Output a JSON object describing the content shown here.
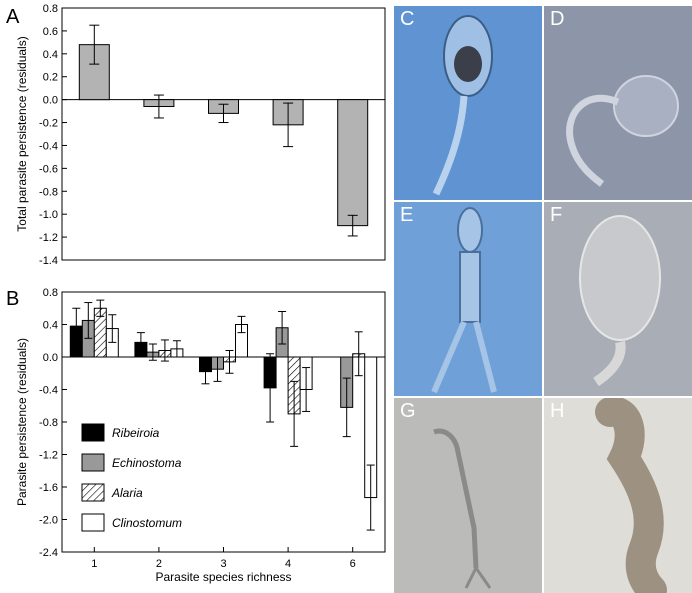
{
  "chart_data": [
    {
      "panel": "A",
      "type": "bar",
      "categories": [
        "1",
        "2",
        "3",
        "4",
        "6"
      ],
      "values": [
        0.48,
        -0.06,
        -0.12,
        -0.22,
        -1.1
      ],
      "errors": [
        0.17,
        0.1,
        0.08,
        0.19,
        0.09
      ],
      "ylabel": "Total parasite persistence (residuals)",
      "ylim": [
        -1.4,
        0.8
      ],
      "yticks": [
        "0.8",
        "0.6",
        "0.4",
        "0.2",
        "0.0",
        "-0.2",
        "-0.4",
        "-0.6",
        "-0.8",
        "-1.0",
        "-1.2",
        "-1.4"
      ],
      "bar_color": "#b3b3b3"
    },
    {
      "panel": "B",
      "type": "bar",
      "categories": [
        "1",
        "2",
        "3",
        "4",
        "6"
      ],
      "xlabel": "Parasite species richness",
      "ylabel": "Parasite persistence (residuals)",
      "ylim": [
        -2.4,
        0.8
      ],
      "yticks": [
        "0.8",
        "0.4",
        "0.0",
        "-0.4",
        "-0.8",
        "-1.2",
        "-1.6",
        "-2.0",
        "-2.4"
      ],
      "legend_position": "lower-left",
      "series": [
        {
          "name": "Ribeiroia",
          "style": "black",
          "values": [
            0.38,
            0.18,
            -0.18,
            -0.38,
            null
          ],
          "errors": [
            0.22,
            0.12,
            0.15,
            0.42,
            null
          ]
        },
        {
          "name": "Echinostoma",
          "style": "gray",
          "values": [
            0.45,
            0.06,
            -0.15,
            0.36,
            -0.62
          ],
          "errors": [
            0.22,
            0.1,
            0.15,
            0.2,
            0.36
          ]
        },
        {
          "name": "Alaria",
          "style": "hatched",
          "values": [
            0.6,
            0.08,
            -0.06,
            -0.7,
            0.04
          ],
          "errors": [
            0.1,
            0.13,
            0.14,
            0.4,
            0.27
          ]
        },
        {
          "name": "Clinostomum",
          "style": "white",
          "values": [
            0.35,
            0.1,
            0.4,
            -0.4,
            -1.73
          ],
          "errors": [
            0.17,
            0.1,
            0.1,
            0.27,
            0.4
          ]
        }
      ]
    }
  ],
  "panel_labels": {
    "a": "A",
    "b": "B"
  },
  "photo_panels": [
    {
      "label": "C",
      "bg": "#5b8fd0",
      "icon": "cercaria-large-oval-icon"
    },
    {
      "label": "D",
      "bg": "#8a92a6",
      "icon": "cercaria-curled-tail-icon"
    },
    {
      "label": "E",
      "bg": "#6b9ed6",
      "icon": "cercaria-fork-tail-icon"
    },
    {
      "label": "F",
      "bg": "#a7abb4",
      "icon": "cercaria-oval-body-icon"
    },
    {
      "label": "G",
      "bg": "#b8b8b6",
      "icon": "cercaria-thin-fork-icon"
    },
    {
      "label": "H",
      "bg": "#dedcd7",
      "icon": "cercaria-segmented-icon"
    }
  ]
}
